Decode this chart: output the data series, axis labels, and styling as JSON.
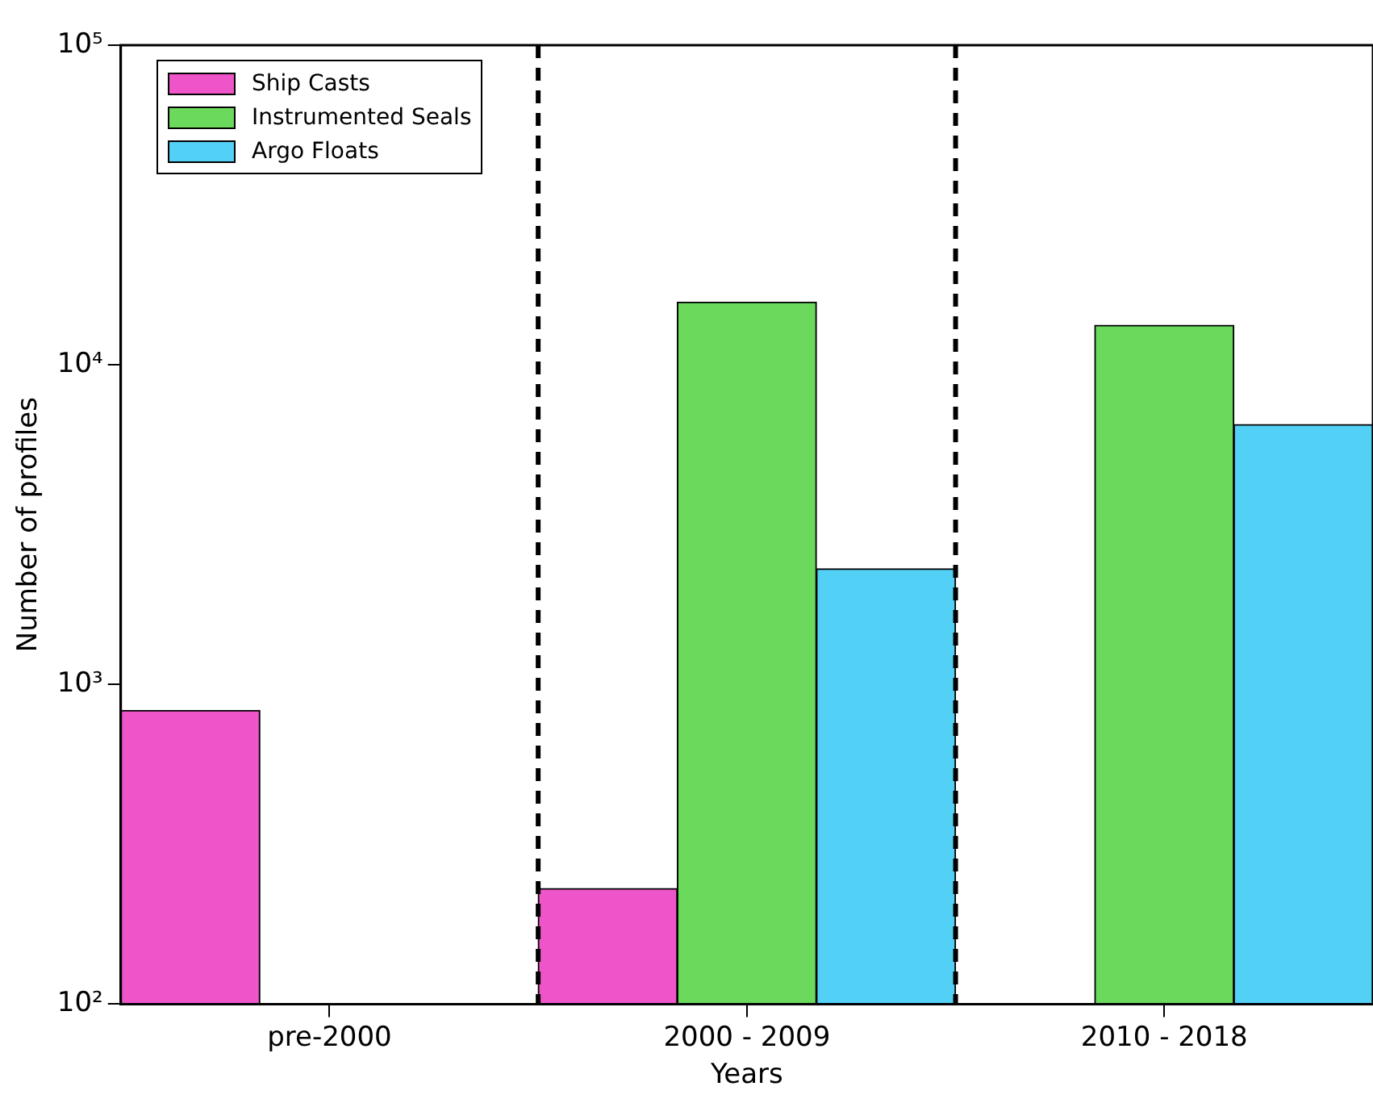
{
  "chart_data": {
    "type": "bar",
    "xlabel": "Years",
    "ylabel": "Number of profiles",
    "categories": [
      "pre-2000",
      "2000 - 2009",
      "2010 - 2018"
    ],
    "series": [
      {
        "name": "Ship Casts",
        "color": "#ee55c8",
        "values": [
          830,
          230,
          null
        ]
      },
      {
        "name": "Instrumented Seals",
        "color": "#6ad95c",
        "values": [
          null,
          15700,
          13300
        ]
      },
      {
        "name": "Argo Floats",
        "color": "#52d0f5",
        "values": [
          null,
          2300,
          6500
        ]
      }
    ],
    "log": "y",
    "ylim": [
      100,
      100000
    ],
    "yticks": [
      {
        "value": 100,
        "label": "10²"
      },
      {
        "value": 1000,
        "label": "10³"
      },
      {
        "value": 10000,
        "label": "10⁴"
      },
      {
        "value": 100000,
        "label": "10⁵"
      }
    ],
    "grid": false,
    "legend": "top left"
  }
}
